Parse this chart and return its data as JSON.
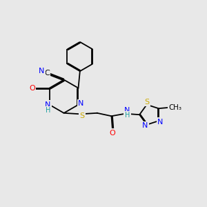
{
  "background_color": "#e8e8e8",
  "atom_colors": {
    "C": "#000000",
    "N": "#0000ff",
    "O": "#ff0000",
    "S": "#ccaa00",
    "H": "#1a9e9e"
  },
  "font_size": 8.0,
  "line_width": 1.3
}
